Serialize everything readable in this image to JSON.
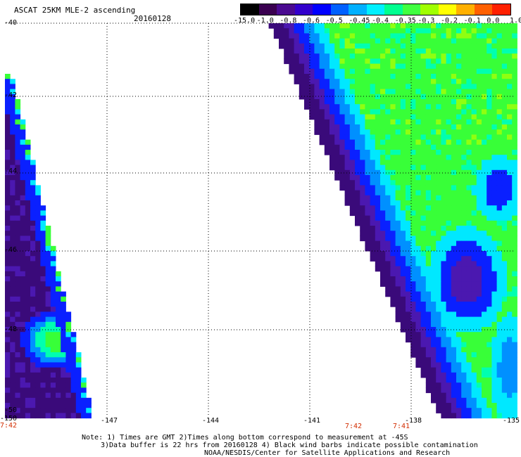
{
  "header": {
    "title": "ASCAT 25KM MLE-2 ascending",
    "date": "20160128"
  },
  "colorbar": {
    "labels": [
      "-15.0",
      "-1.0",
      "-0.8",
      "-0.6",
      "-0.5",
      "-0.45",
      "-0.4",
      "-0.35",
      "-0.3",
      "-0.2",
      "-0.1",
      "0.0",
      "1.0"
    ],
    "colors": [
      "#000000",
      "#3a0050",
      "#4a0a90",
      "#3300cc",
      "#0000ff",
      "#0060ff",
      "#00b0ff",
      "#00f0ff",
      "#00ff90",
      "#40ff40",
      "#a0ff00",
      "#ffff00",
      "#ffb000",
      "#ff6000",
      "#ff2000"
    ]
  },
  "axes": {
    "lon_ticks": [
      "-150",
      "-147",
      "-144",
      "-141",
      "-138",
      "-135"
    ],
    "lat_ticks": [
      "-40",
      "-42",
      "-44",
      "-46",
      "-48",
      "-50"
    ]
  },
  "times": {
    "left": "7:42",
    "mid1": "7:42",
    "mid2": "7:41"
  },
  "notes": {
    "line1": "Note: 1) Times are GMT 2)Times along bottom correspond to measurement at -45S",
    "line2": "3)Data buffer is 22 hrs from 20160128 4) Black wind barbs indicate possible contamination",
    "line3": "NOAA/NESDIS/Center for Satellite Applications and Research"
  },
  "palette": {
    "deep_purple": "#3a0a7a",
    "purple": "#4b18b0",
    "blue": "#0a20ff",
    "sky": "#0090ff",
    "cyan": "#00e8ff",
    "aqua": "#00ffb0",
    "green": "#38ff38",
    "lime": "#90ff10"
  }
}
